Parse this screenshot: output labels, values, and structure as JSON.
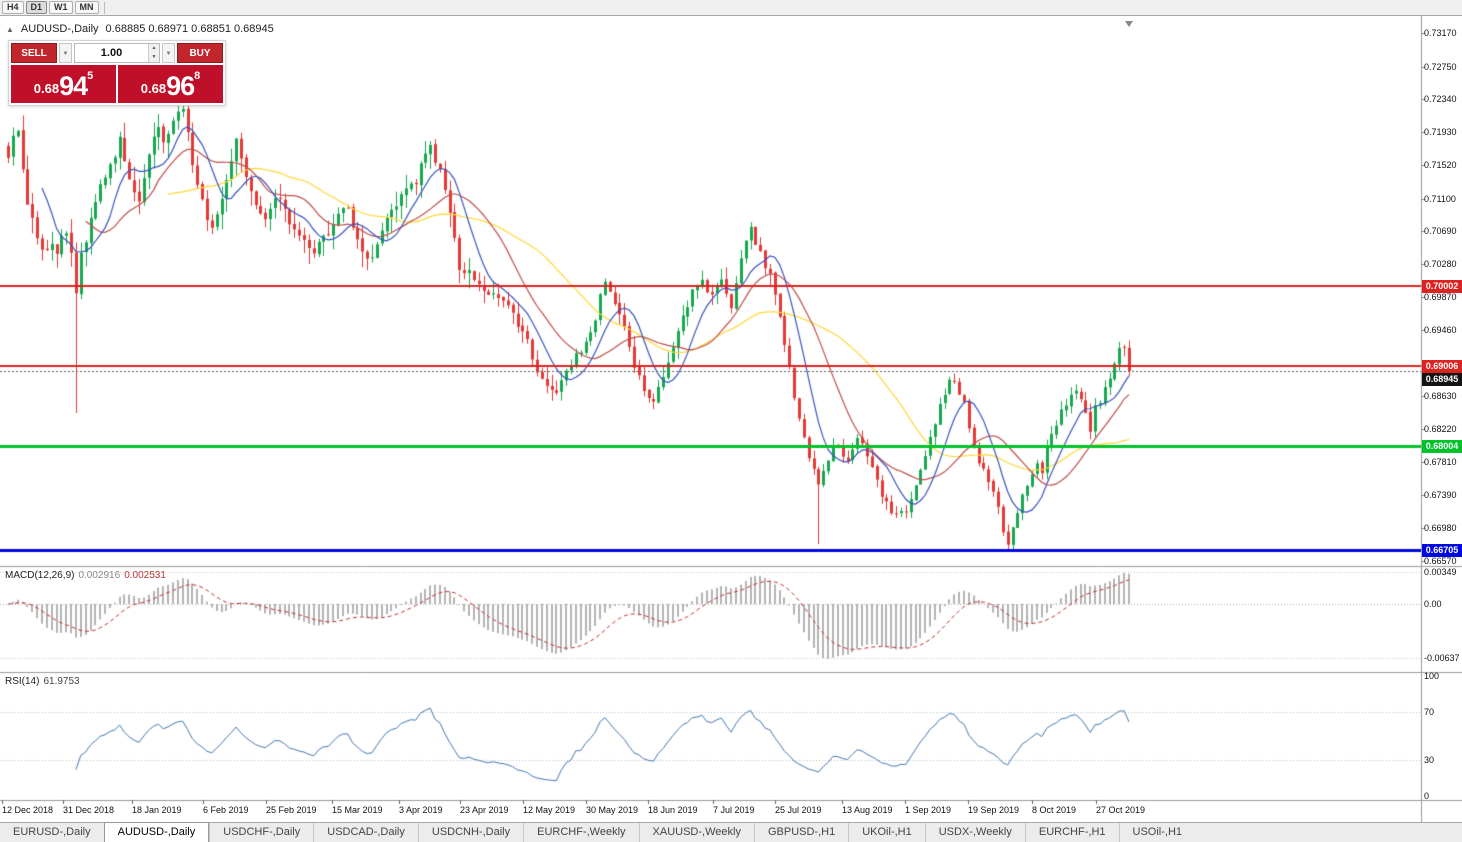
{
  "toolbar": {
    "timeframes": [
      "H4",
      "D1",
      "W1",
      "MN"
    ],
    "active": "D1"
  },
  "icons": {
    "collapse": "▲",
    "caret_down": "▼",
    "spin_up": "▲",
    "spin_down": "▼"
  },
  "colors": {
    "button_red": "#c0262c",
    "price_red": "#c00f28",
    "axis_text": "#111111"
  },
  "chart": {
    "title_symbol": "AUDUSD-,Daily",
    "title_ohlc": "0.68885 0.68971 0.68851 0.68945"
  },
  "trade_panel": {
    "sell_label": "SELL",
    "buy_label": "BUY",
    "volume": "1.00",
    "sell_price_prefix": "0.68",
    "sell_price_big": "94",
    "sell_price_sup": "5",
    "buy_price_prefix": "0.68",
    "buy_price_big": "96",
    "buy_price_sup": "8"
  },
  "chart_data": {
    "type": "candlestick",
    "symbol": "AUDUSD",
    "timeframe": "Daily",
    "ohlc_display": {
      "open": "0.68885",
      "high": "0.68971",
      "low": "0.68851",
      "close": "0.68945"
    },
    "bid": 0.68945,
    "ask": 0.68968,
    "y_ticks": [
      0.7317,
      0.7275,
      0.7234,
      0.7193,
      0.7152,
      0.711,
      0.7069,
      0.7028,
      0.6987,
      0.6946,
      0.6863,
      0.6822,
      0.6781,
      0.6739,
      0.6698,
      0.6657
    ],
    "x_labels": [
      "12 Dec 2018",
      "31 Dec 2018",
      "18 Jan 2019",
      "6 Feb 2019",
      "25 Feb 2019",
      "15 Mar 2019",
      "3 Apr 2019",
      "23 Apr 2019",
      "12 May 2019",
      "30 May 2019",
      "18 Jun 2019",
      "7 Jul 2019",
      "25 Jul 2019",
      "13 Aug 2019",
      "1 Sep 2019",
      "19 Sep 2019",
      "8 Oct 2019",
      "27 Oct 2019"
    ],
    "hlines": [
      {
        "value": 0.70002,
        "label": "0.70002",
        "color": "#dd2222",
        "width": 2
      },
      {
        "value": 0.69006,
        "label": "0.69006",
        "color": "#dd2222",
        "width": 2
      },
      {
        "value": 0.68004,
        "label": "0.68004",
        "color": "#00c32a",
        "width": 3
      },
      {
        "value": 0.66705,
        "label": "0.66705",
        "color": "#0008e0",
        "width": 3
      }
    ],
    "current_price_badge": {
      "label": "0.68945",
      "color": "#141414"
    },
    "candles": {
      "count": 232,
      "up_color": "#17a84f",
      "down_color": "#e53935",
      "last_close": 0.68945,
      "special_lows": [
        [
          14,
          0.6842
        ],
        [
          167,
          0.6678
        ],
        [
          206,
          0.6671
        ]
      ],
      "anchors": [
        [
          0,
          0.7158
        ],
        [
          1,
          0.7188
        ],
        [
          2,
          0.7196
        ],
        [
          3,
          0.715
        ],
        [
          4,
          0.7105
        ],
        [
          5,
          0.7085
        ],
        [
          6,
          0.7062
        ],
        [
          7,
          0.705
        ],
        [
          8,
          0.7042
        ],
        [
          9,
          0.7055
        ],
        [
          10,
          0.7045
        ],
        [
          11,
          0.706
        ],
        [
          12,
          0.7062
        ],
        [
          13,
          0.7042
        ],
        [
          14,
          0.6992
        ],
        [
          15,
          0.704
        ],
        [
          16,
          0.7058
        ],
        [
          17,
          0.7082
        ],
        [
          18,
          0.711
        ],
        [
          20,
          0.7135
        ],
        [
          22,
          0.7165
        ],
        [
          23,
          0.7188
        ],
        [
          24,
          0.716
        ],
        [
          25,
          0.7135
        ],
        [
          26,
          0.7118
        ],
        [
          27,
          0.7108
        ],
        [
          28,
          0.7135
        ],
        [
          29,
          0.716
        ],
        [
          30,
          0.7182
        ],
        [
          31,
          0.72
        ],
        [
          32,
          0.7185
        ],
        [
          33,
          0.7195
        ],
        [
          34,
          0.7205
        ],
        [
          35,
          0.7218
        ],
        [
          36,
          0.7222
        ],
        [
          37,
          0.7192
        ],
        [
          38,
          0.7155
        ],
        [
          39,
          0.7125
        ],
        [
          40,
          0.7108
        ],
        [
          41,
          0.7088
        ],
        [
          42,
          0.7078
        ],
        [
          43,
          0.7088
        ],
        [
          44,
          0.7105
        ],
        [
          45,
          0.7128
        ],
        [
          46,
          0.7158
        ],
        [
          47,
          0.7182
        ],
        [
          48,
          0.7162
        ],
        [
          49,
          0.7142
        ],
        [
          50,
          0.7122
        ],
        [
          51,
          0.7105
        ],
        [
          52,
          0.7095
        ],
        [
          53,
          0.7088
        ],
        [
          54,
          0.7098
        ],
        [
          55,
          0.7108
        ],
        [
          56,
          0.7105
        ],
        [
          58,
          0.7082
        ],
        [
          60,
          0.7062
        ],
        [
          62,
          0.7048
        ],
        [
          63,
          0.704
        ],
        [
          64,
          0.7052
        ],
        [
          65,
          0.7062
        ],
        [
          66,
          0.707
        ],
        [
          67,
          0.7078
        ],
        [
          68,
          0.7088
        ],
        [
          69,
          0.7095
        ],
        [
          70,
          0.7098
        ],
        [
          71,
          0.7078
        ],
        [
          72,
          0.7058
        ],
        [
          73,
          0.7042
        ],
        [
          74,
          0.7035
        ],
        [
          75,
          0.7038
        ],
        [
          76,
          0.7055
        ],
        [
          77,
          0.7068
        ],
        [
          78,
          0.7082
        ],
        [
          79,
          0.7095
        ],
        [
          80,
          0.7105
        ],
        [
          81,
          0.7112
        ],
        [
          82,
          0.7118
        ],
        [
          83,
          0.7125
        ],
        [
          84,
          0.7132
        ],
        [
          85,
          0.715
        ],
        [
          86,
          0.7165
        ],
        [
          87,
          0.7172
        ],
        [
          88,
          0.7155
        ],
        [
          89,
          0.7142
        ],
        [
          90,
          0.7118
        ],
        [
          91,
          0.7095
        ],
        [
          92,
          0.7058
        ],
        [
          93,
          0.7022
        ],
        [
          94,
          0.7015
        ],
        [
          95,
          0.7022
        ],
        [
          96,
          0.7012
        ],
        [
          97,
          0.7005
        ],
        [
          98,
          0.6995
        ],
        [
          99,
          0.6988
        ],
        [
          100,
          0.6992
        ],
        [
          101,
          0.6985
        ],
        [
          102,
          0.6982
        ],
        [
          103,
          0.6972
        ],
        [
          104,
          0.6962
        ],
        [
          105,
          0.6952
        ],
        [
          106,
          0.694
        ],
        [
          107,
          0.693
        ],
        [
          108,
          0.6912
        ],
        [
          109,
          0.6898
        ],
        [
          110,
          0.6885
        ],
        [
          111,
          0.6875
        ],
        [
          112,
          0.6868
        ],
        [
          113,
          0.6872
        ],
        [
          114,
          0.6882
        ],
        [
          115,
          0.6892
        ],
        [
          116,
          0.6902
        ],
        [
          117,
          0.6912
        ],
        [
          118,
          0.692
        ],
        [
          119,
          0.6928
        ],
        [
          120,
          0.6945
        ],
        [
          121,
          0.6962
        ],
        [
          122,
          0.6988
        ],
        [
          123,
          0.7008
        ],
        [
          124,
          0.6995
        ],
        [
          125,
          0.6982
        ],
        [
          126,
          0.6965
        ],
        [
          127,
          0.6948
        ],
        [
          128,
          0.6925
        ],
        [
          129,
          0.6902
        ],
        [
          130,
          0.6885
        ],
        [
          131,
          0.6868
        ],
        [
          132,
          0.6858
        ],
        [
          133,
          0.6852
        ],
        [
          134,
          0.687
        ],
        [
          135,
          0.6888
        ],
        [
          136,
          0.6905
        ],
        [
          137,
          0.6925
        ],
        [
          138,
          0.6945
        ],
        [
          139,
          0.6962
        ],
        [
          140,
          0.6978
        ],
        [
          141,
          0.6992
        ],
        [
          142,
          0.7
        ],
        [
          143,
          0.7005
        ],
        [
          144,
          0.6995
        ],
        [
          145,
          0.6985
        ],
        [
          146,
          0.6998
        ],
        [
          147,
          0.7008
        ],
        [
          148,
          0.6992
        ],
        [
          149,
          0.6978
        ],
        [
          150,
          0.7005
        ],
        [
          151,
          0.7032
        ],
        [
          152,
          0.7055
        ],
        [
          153,
          0.707
        ],
        [
          154,
          0.7055
        ],
        [
          155,
          0.704
        ],
        [
          156,
          0.7028
        ],
        [
          157,
          0.7015
        ],
        [
          158,
          0.6988
        ],
        [
          159,
          0.6958
        ],
        [
          160,
          0.6928
        ],
        [
          161,
          0.6898
        ],
        [
          162,
          0.6862
        ],
        [
          163,
          0.6832
        ],
        [
          164,
          0.6808
        ],
        [
          165,
          0.6788
        ],
        [
          166,
          0.6772
        ],
        [
          167,
          0.6758
        ],
        [
          168,
          0.6772
        ],
        [
          169,
          0.6788
        ],
        [
          170,
          0.6798
        ],
        [
          171,
          0.6802
        ],
        [
          172,
          0.6788
        ],
        [
          173,
          0.6782
        ],
        [
          174,
          0.6798
        ],
        [
          175,
          0.6812
        ],
        [
          176,
          0.68
        ],
        [
          177,
          0.6788
        ],
        [
          178,
          0.6775
        ],
        [
          179,
          0.6762
        ],
        [
          180,
          0.6742
        ],
        [
          181,
          0.6728
        ],
        [
          182,
          0.6718
        ],
        [
          183,
          0.6712
        ],
        [
          184,
          0.6716
        ],
        [
          185,
          0.6722
        ],
        [
          186,
          0.6738
        ],
        [
          187,
          0.6755
        ],
        [
          188,
          0.6772
        ],
        [
          189,
          0.6792
        ],
        [
          190,
          0.6815
        ],
        [
          191,
          0.6832
        ],
        [
          192,
          0.6855
        ],
        [
          193,
          0.6868
        ],
        [
          194,
          0.6878
        ],
        [
          195,
          0.6882
        ],
        [
          196,
          0.6868
        ],
        [
          197,
          0.6852
        ],
        [
          198,
          0.6828
        ],
        [
          199,
          0.6805
        ],
        [
          200,
          0.6782
        ],
        [
          201,
          0.6768
        ],
        [
          202,
          0.6752
        ],
        [
          203,
          0.6742
        ],
        [
          204,
          0.6722
        ],
        [
          205,
          0.6698
        ],
        [
          206,
          0.6682
        ],
        [
          207,
          0.6702
        ],
        [
          208,
          0.6722
        ],
        [
          209,
          0.6738
        ],
        [
          210,
          0.6748
        ],
        [
          211,
          0.6768
        ],
        [
          212,
          0.6775
        ],
        [
          213,
          0.6768
        ],
        [
          214,
          0.6795
        ],
        [
          215,
          0.6812
        ],
        [
          216,
          0.6825
        ],
        [
          217,
          0.6842
        ],
        [
          218,
          0.6855
        ],
        [
          219,
          0.6868
        ],
        [
          220,
          0.6872
        ],
        [
          221,
          0.6858
        ],
        [
          222,
          0.6842
        ],
        [
          223,
          0.6818
        ],
        [
          224,
          0.6848
        ],
        [
          225,
          0.6858
        ],
        [
          226,
          0.6872
        ],
        [
          227,
          0.6888
        ],
        [
          228,
          0.6905
        ],
        [
          229,
          0.6922
        ],
        [
          230,
          0.6928
        ],
        [
          231,
          0.68945
        ]
      ]
    },
    "moving_averages": [
      {
        "period": 8,
        "color": "#3b55c0"
      },
      {
        "period": 17,
        "color": "#c0504d"
      },
      {
        "period": 34,
        "color": "#ffd83a"
      }
    ],
    "indicators": {
      "macd": {
        "name": "MACD(12,26,9)",
        "value_main": "0.002916",
        "value_signal": "0.002531",
        "params": [
          12,
          26,
          9
        ],
        "axis_labels": [
          "0.00349",
          "0.00",
          "-0.00637"
        ]
      },
      "rsi": {
        "name": "RSI(14)",
        "value": "61.9753",
        "period": 14,
        "levels": [
          70,
          30
        ],
        "axis_labels": [
          "100",
          "70",
          "30",
          "0"
        ]
      }
    }
  },
  "tabs": {
    "items": [
      "EURUSD-,Daily",
      "AUDUSD-,Daily",
      "USDCHF-,Daily",
      "USDCAD-,Daily",
      "USDCNH-,Daily",
      "EURCHF-,Weekly",
      "XAUUSD-,Weekly",
      "GBPUSD-,H1",
      "UKOil-,H1",
      "USDX-,Weekly",
      "EURCHF-,H1",
      "USOil-,H1"
    ],
    "active_index": 1
  }
}
